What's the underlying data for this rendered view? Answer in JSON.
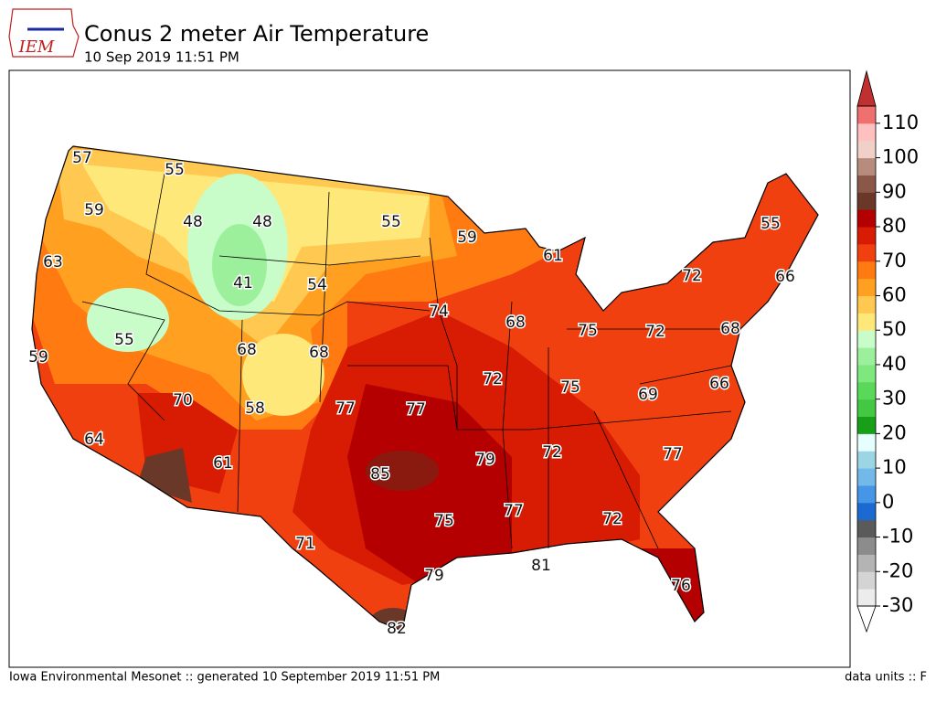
{
  "header": {
    "logo_text": "IEM",
    "title": "Conus 2 meter Air Temperature",
    "subtitle": "10 Sep 2019 11:51 PM"
  },
  "map": {
    "labels": [
      57,
      55,
      59,
      48,
      48,
      55,
      59,
      61,
      55,
      63,
      41,
      54,
      72,
      66,
      74,
      68,
      75,
      72,
      68,
      55,
      68,
      68,
      59,
      72,
      75,
      66,
      69,
      70,
      58,
      77,
      77,
      64,
      72,
      77,
      79,
      61,
      85,
      77,
      75,
      72,
      71,
      81,
      79,
      76,
      82
    ]
  },
  "colorbar": {
    "lim": [
      -30,
      115
    ],
    "ticks": [
      -30,
      -20,
      -10,
      0,
      10,
      20,
      30,
      40,
      50,
      60,
      70,
      80,
      90,
      100,
      110
    ],
    "colors": [
      "#ececec",
      "#d4d4d4",
      "#b4b4b4",
      "#8c8c8c",
      "#5a5a5a",
      "#1a6ad2",
      "#4696e8",
      "#72b8e8",
      "#9cd6e4",
      "#e6fefe",
      "#17a017",
      "#44c844",
      "#5ad85a",
      "#7ee87e",
      "#9cf09c",
      "#c8fcc8",
      "#ffe87a",
      "#ffc850",
      "#ffa020",
      "#ff7a10",
      "#f04010",
      "#d81c04",
      "#b40000",
      "#6a3828",
      "#8a5848",
      "#b88c7c",
      "#f0d0c8",
      "#ffc0c0",
      "#f07070"
    ],
    "over_color": "#c03030",
    "under_color": "#ffffff"
  },
  "footer": {
    "left": "Iowa Environmental Mesonet :: generated 10 September 2019 11:51 PM",
    "right": "data units :: F"
  }
}
